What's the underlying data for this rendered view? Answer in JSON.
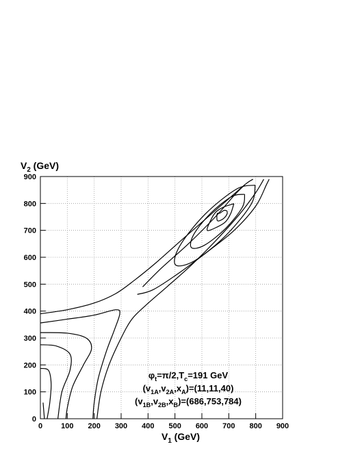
{
  "chart_data": {
    "type": "contour",
    "x_label": [
      {
        "text": "V"
      },
      {
        "text": "1",
        "sub": true
      },
      {
        "text": " (GeV)"
      }
    ],
    "y_label": [
      {
        "text": "V"
      },
      {
        "text": "2",
        "sub": true
      },
      {
        "text": " (GeV)"
      }
    ],
    "xlim": [
      0,
      900
    ],
    "ylim": [
      0,
      900
    ],
    "xticks": [
      0,
      100,
      200,
      300,
      400,
      500,
      600,
      700,
      800,
      900
    ],
    "yticks": [
      0,
      100,
      200,
      300,
      400,
      500,
      600,
      700,
      800,
      900
    ],
    "grid": true,
    "color": "#000000",
    "annotation": [
      [
        {
          "text": "φ"
        },
        {
          "text": "t",
          "sub": true
        },
        {
          "text": "=π/2,T"
        },
        {
          "text": "c",
          "sub": true
        },
        {
          "text": "=191 GeV"
        }
      ],
      [
        {
          "text": "(v"
        },
        {
          "text": "1A",
          "sub": true
        },
        {
          "text": ",v"
        },
        {
          "text": "2A",
          "sub": true
        },
        {
          "text": ",x"
        },
        {
          "text": "A",
          "sub": true
        },
        {
          "text": ")=(11,11,40)"
        }
      ],
      [
        {
          "text": "(v"
        },
        {
          "text": "1B",
          "sub": true
        },
        {
          "text": ",v"
        },
        {
          "text": "2B",
          "sub": true
        },
        {
          "text": ",x"
        },
        {
          "text": "B",
          "sub": true
        },
        {
          "text": ")=(686,753,784)"
        }
      ]
    ],
    "contours": [
      {
        "x": [
          0,
          100,
          200,
          280,
          350,
          430,
          520,
          600,
          680,
          760,
          790
        ],
        "y": [
          390,
          405,
          430,
          465,
          515,
          580,
          660,
          730,
          800,
          870,
          890
        ]
      },
      {
        "x": [
          0,
          100,
          200,
          280,
          295,
          275,
          245,
          215,
          200,
          195
        ],
        "y": [
          356,
          370,
          385,
          405,
          390,
          330,
          250,
          150,
          60,
          0
        ]
      },
      {
        "x": [
          210,
          225,
          255,
          300,
          340,
          390,
          470,
          560,
          650,
          740,
          800,
          830
        ],
        "y": [
          0,
          100,
          200,
          300,
          370,
          420,
          490,
          570,
          660,
          760,
          840,
          890
        ]
      },
      {
        "x": [
          360,
          420,
          520,
          620,
          720,
          800,
          840,
          850
        ],
        "y": [
          462,
          480,
          545,
          620,
          700,
          790,
          870,
          890
        ]
      },
      {
        "x": [
          380,
          450,
          550,
          650,
          720,
          760
        ],
        "y": [
          490,
          560,
          650,
          750,
          830,
          870
        ]
      },
      {
        "x": [
          798,
          728,
          611,
          518,
          502,
          573,
          689,
          783,
          798
        ],
        "y": [
          868,
          853,
          759,
          642,
          572,
          587,
          681,
          797,
          868
        ]
      },
      {
        "x": [
          759,
          710,
          632,
          570,
          561,
          610,
          688,
          750,
          759
        ],
        "y": [
          834,
          825,
          763,
          685,
          636,
          645,
          707,
          785,
          834
        ]
      },
      {
        "x": [
          719,
          682,
          652,
          633,
          620,
          658,
          688,
          707,
          719
        ],
        "y": [
          799,
          787,
          768,
          738,
          700,
          713,
          732,
          762,
          799
        ]
      },
      {
        "x": [
          693,
          682,
          667,
          657,
          657,
          669,
          684,
          694,
          693
        ],
        "y": [
          773,
          774,
          764,
          762,
          737,
          737,
          747,
          762,
          773
        ]
      },
      {
        "x": [
          0,
          100,
          170,
          190,
          160,
          120,
          100,
          95
        ],
        "y": [
          320,
          318,
          300,
          260,
          200,
          120,
          40,
          0
        ]
      },
      {
        "x": [
          0,
          60,
          110,
          110,
          80,
          65
        ],
        "y": [
          275,
          270,
          240,
          180,
          100,
          0
        ]
      },
      {
        "x": [
          0,
          30,
          40,
          35,
          25
        ],
        "y": [
          187,
          180,
          130,
          60,
          0
        ]
      },
      {
        "x": [
          10,
          15
        ],
        "y": [
          60,
          0
        ]
      }
    ]
  }
}
